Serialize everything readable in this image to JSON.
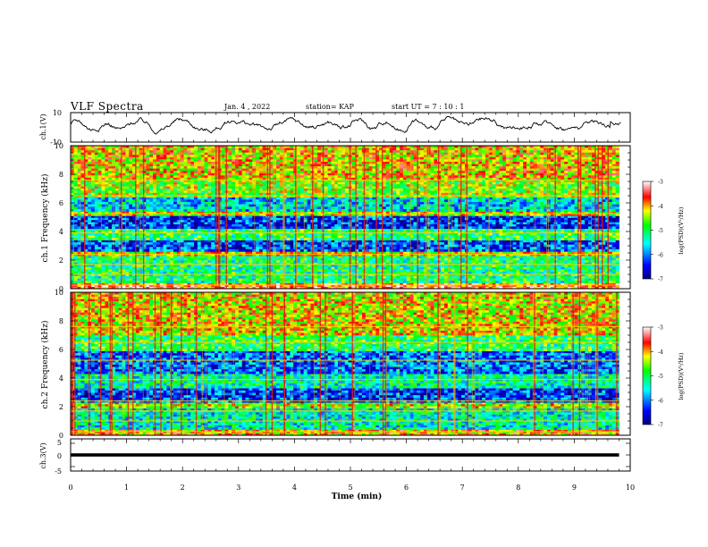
{
  "header": {
    "title": "VLF Spectra",
    "date": "Jan. 4 , 2022",
    "station": "station= KAP",
    "start": "start UT =  7 : 10 : 1"
  },
  "chart_data": [
    {
      "type": "line",
      "ylabel": "ch.1(V)",
      "ylim": [
        -10,
        10
      ],
      "yticks": [
        "10",
        "-10"
      ],
      "xlim": [
        0,
        10
      ],
      "series": [
        {
          "color": "#000000",
          "range_approx": [
            -4,
            8
          ]
        }
      ]
    },
    {
      "type": "heatmap",
      "ylabel": "ch.1 Frequency (kHz)",
      "ylim": [
        0,
        10
      ],
      "yticks": [
        "0",
        "2",
        "4",
        "6",
        "8",
        "10"
      ],
      "xlim": [
        0,
        9.8
      ],
      "colorbar": {
        "label": "log(PSD)(V²/Hz)",
        "ticks": [
          "-3",
          "-4",
          "-5",
          "-6",
          "-7"
        ],
        "range": [
          -7,
          -3
        ]
      },
      "bands_khz": [
        {
          "from": 0.0,
          "to": 0.4,
          "level": -3.6
        },
        {
          "from": 0.4,
          "to": 2.3,
          "level": -5.1
        },
        {
          "from": 2.3,
          "to": 2.6,
          "level": -4.2
        },
        {
          "from": 2.6,
          "to": 3.4,
          "level": -6.2
        },
        {
          "from": 3.4,
          "to": 4.2,
          "level": -5.0
        },
        {
          "from": 4.2,
          "to": 5.1,
          "level": -6.3
        },
        {
          "from": 5.1,
          "to": 5.4,
          "level": -4.4
        },
        {
          "from": 5.4,
          "to": 6.4,
          "level": -5.6
        },
        {
          "from": 6.4,
          "to": 7.6,
          "level": -4.6
        },
        {
          "from": 7.6,
          "to": 10.0,
          "level": -4.1
        }
      ]
    },
    {
      "type": "heatmap",
      "ylabel": "ch.2 Frequency (kHz)",
      "ylim": [
        0,
        10
      ],
      "yticks": [
        "0",
        "2",
        "4",
        "6",
        "8",
        "10"
      ],
      "xlim": [
        0,
        9.8
      ],
      "colorbar": {
        "label": "log(PSD)(V²/Hz)",
        "ticks": [
          "-3",
          "-4",
          "-5",
          "-6",
          "-7"
        ],
        "range": [
          -7,
          -3
        ]
      },
      "bands_khz": [
        {
          "from": 0.0,
          "to": 0.4,
          "level": -4.0
        },
        {
          "from": 0.4,
          "to": 1.9,
          "level": -5.4
        },
        {
          "from": 1.9,
          "to": 2.3,
          "level": -4.4
        },
        {
          "from": 2.3,
          "to": 3.3,
          "level": -6.3
        },
        {
          "from": 3.3,
          "to": 4.3,
          "level": -5.3
        },
        {
          "from": 4.3,
          "to": 5.9,
          "level": -6.1
        },
        {
          "from": 5.9,
          "to": 7.0,
          "level": -5.0
        },
        {
          "from": 7.0,
          "to": 10.0,
          "level": -4.2
        }
      ]
    },
    {
      "type": "line",
      "ylabel": "ch.3(V)",
      "ylim": [
        -5,
        5
      ],
      "yticks": [
        "5",
        "0",
        "-5"
      ],
      "xlim": [
        0,
        10
      ],
      "xlabel": "Time (min)",
      "xticks": [
        "0",
        "1",
        "2",
        "3",
        "4",
        "5",
        "6",
        "7",
        "8",
        "9",
        "10"
      ],
      "series": [
        {
          "color": "#000000",
          "level": 0,
          "band": [
            -0.5,
            0.5
          ]
        }
      ]
    }
  ]
}
